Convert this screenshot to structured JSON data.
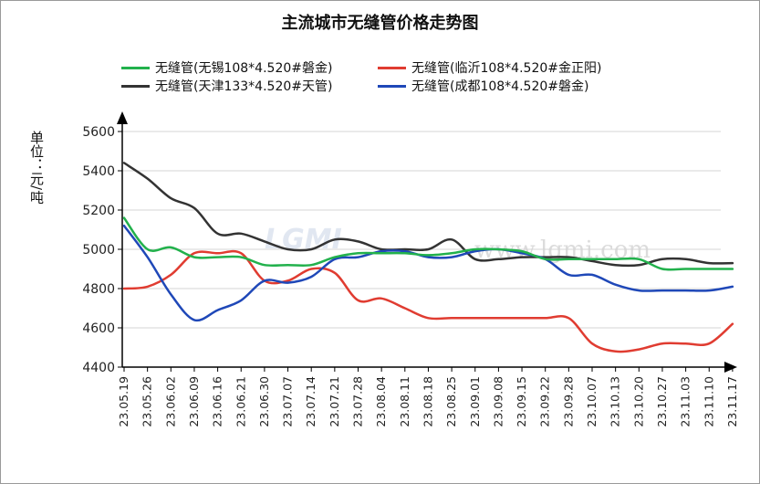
{
  "chart_data": {
    "type": "line",
    "title": "主流城市无缝管价格走势图",
    "ylabel": "单位：元/吨",
    "ylim": [
      4400,
      5600
    ],
    "yticks": [
      4400,
      4600,
      4800,
      5000,
      5200,
      5400,
      5600
    ],
    "grid": "horizontal",
    "legend_position": "top",
    "categories": [
      "23.05.19",
      "23.05.26",
      "23.06.02",
      "23.06.09",
      "23.06.16",
      "23.06.21",
      "23.06.30",
      "23.07.07",
      "23.07.14",
      "23.07.21",
      "23.07.28",
      "23.08.04",
      "23.08.11",
      "23.08.18",
      "23.08.25",
      "23.09.01",
      "23.09.08",
      "23.09.15",
      "23.09.22",
      "23.09.28",
      "23.10.07",
      "23.10.13",
      "23.10.20",
      "23.10.27",
      "23.11.03",
      "23.11.10",
      "23.11.17"
    ],
    "series": [
      {
        "name": "无缝管(无锡108*4.520#磐金)",
        "color": "#22b14c",
        "values": [
          5160,
          5000,
          5010,
          4960,
          4960,
          4960,
          4920,
          4920,
          4920,
          4960,
          4980,
          4980,
          4980,
          4970,
          4980,
          5000,
          5000,
          4990,
          4950,
          4950,
          4950,
          4950,
          4950,
          4900,
          4900,
          4900,
          4900
        ]
      },
      {
        "name": "无缝管(临沂108*4.520#金正阳)",
        "color": "#e03c31",
        "values": [
          4800,
          4810,
          4870,
          4980,
          4980,
          4980,
          4840,
          4840,
          4900,
          4880,
          4740,
          4750,
          4700,
          4650,
          4650,
          4650,
          4650,
          4650,
          4650,
          4650,
          4520,
          4480,
          4490,
          4520,
          4520,
          4520,
          4620
        ]
      },
      {
        "name": "无缝管(天津133*4.520#天管)",
        "color": "#333333",
        "values": [
          5440,
          5360,
          5260,
          5210,
          5080,
          5080,
          5040,
          5000,
          5000,
          5050,
          5040,
          5000,
          5000,
          5000,
          5050,
          4950,
          4950,
          4960,
          4960,
          4960,
          4940,
          4920,
          4920,
          4950,
          4950,
          4930,
          4930
        ]
      },
      {
        "name": "无缝管(成都108*4.520#磐金)",
        "color": "#1f48b8",
        "values": [
          5120,
          4960,
          4770,
          4640,
          4690,
          4740,
          4840,
          4830,
          4860,
          4950,
          4960,
          4990,
          4990,
          4960,
          4960,
          4990,
          5000,
          4980,
          4950,
          4870,
          4870,
          4820,
          4790,
          4790,
          4790,
          4790,
          4810
        ]
      }
    ],
    "watermark": "www.lgmi.com"
  }
}
